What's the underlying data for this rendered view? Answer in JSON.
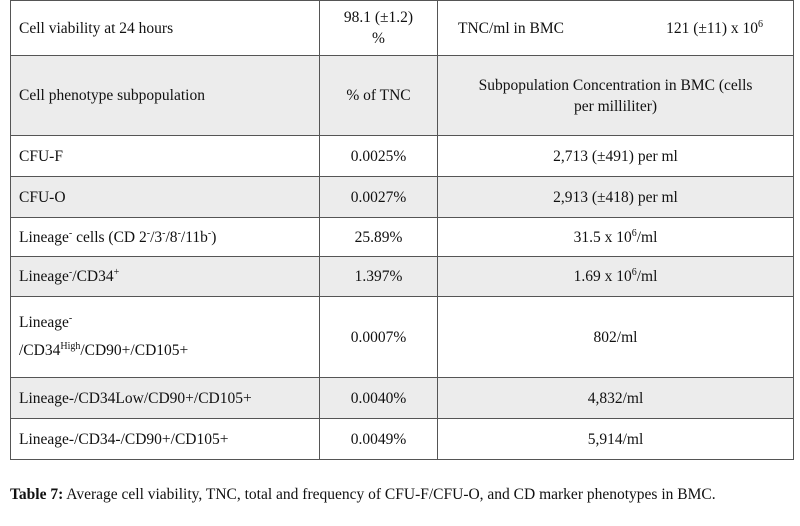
{
  "viability_row": {
    "label": "Cell viability at 24 hours",
    "value_line1": "98.1 (±1.2)",
    "value_line2": "%",
    "tnc_label": "TNC/ml in BMC",
    "tnc_value": "121 (±11) x 10",
    "tnc_exp": "6"
  },
  "header": {
    "col1": "Cell phenotype subpopulation",
    "col2": "% of TNC",
    "col3_line1": "Subpopulation Concentration in BMC (cells",
    "col3_line2": "per milliliter)"
  },
  "rows": [
    {
      "phenotype": "CFU-F",
      "percent": "0.0025%",
      "concentration": "2,713 (±491) per ml"
    },
    {
      "phenotype": "CFU-O",
      "percent": "0.0027%",
      "concentration": "2,913 (±418) per ml"
    },
    {
      "phenotype_a": "Lineage",
      "phenotype_sup1": "-",
      "phenotype_b": " cells (CD 2",
      "phenotype_sup2": "-",
      "phenotype_c": "/3",
      "phenotype_sup3": "-",
      "phenotype_d": "/8",
      "phenotype_sup4": "-",
      "phenotype_e": "/11b",
      "phenotype_sup5": "-",
      "phenotype_f": ")",
      "percent": "25.89%",
      "conc_base": "31.5 x 10",
      "conc_exp": "6",
      "conc_unit": "/ml"
    },
    {
      "phenotype_a": "Lineage",
      "phenotype_sup1": "-",
      "phenotype_b": "/CD34",
      "phenotype_sup2": "+",
      "percent": "1.397%",
      "conc_base": "1.69 x 10",
      "conc_exp": "6",
      "conc_unit": "/ml"
    },
    {
      "phenotype_line1": "Lineage",
      "phenotype_sup1": "-",
      "phenotype_line2a": "/CD34",
      "phenotype_sup2": "High",
      "phenotype_line2b": "/CD90+/CD105+",
      "percent": "0.0007%",
      "concentration": "802/ml"
    },
    {
      "phenotype": "Lineage-/CD34Low/CD90+/CD105+",
      "percent": "0.0040%",
      "concentration": "4,832/ml"
    },
    {
      "phenotype": "Lineage-/CD34-/CD90+/CD105+",
      "percent": "0.0049%",
      "concentration": "5,914/ml"
    }
  ],
  "caption": {
    "label": "Table 7:",
    "text": " Average cell viability, TNC, total and frequency of CFU-F/CFU-O, and CD marker phenotypes in BMC."
  }
}
